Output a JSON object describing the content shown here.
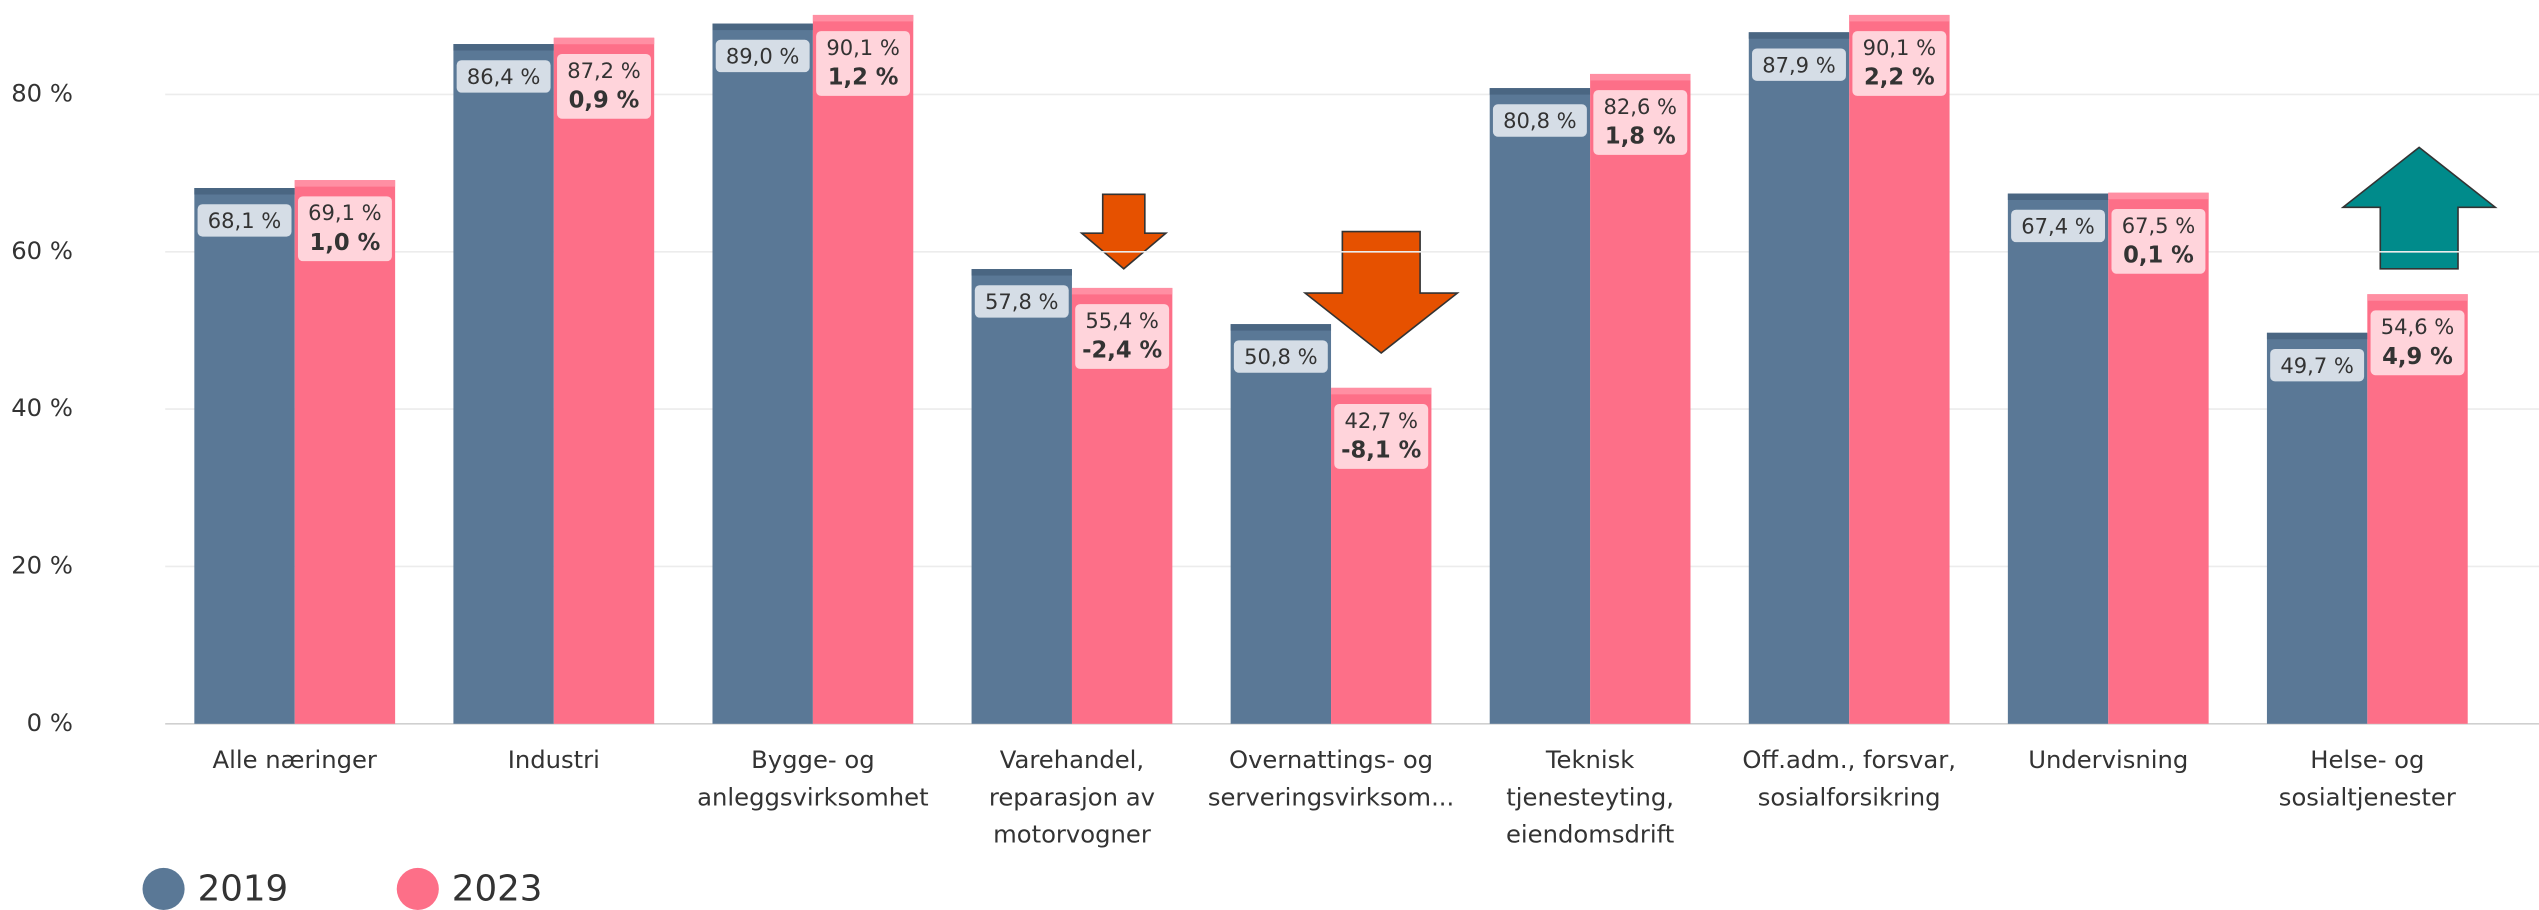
{
  "chart_data": {
    "type": "bar",
    "categories": [
      "Alle næringer",
      "Industri",
      "Bygge- og\nanleggsvirksomhet",
      "Varehandel,\nreparasjon av\nmotorvogner",
      "Overnattings- og\nserveringsvirksom...",
      "Teknisk\ntjenesteyting,\neiendomsdrift",
      "Off.adm., forsvar,\nsosialforsikring",
      "Undervisning",
      "Helse- og\nsosialtjenester"
    ],
    "series": [
      {
        "name": "2019",
        "color": "#5a7896",
        "values": [
          68.1,
          86.4,
          89.0,
          57.8,
          50.8,
          80.8,
          87.9,
          67.4,
          49.7
        ],
        "value_labels": [
          "68,1 %",
          "86,4 %",
          "89,0 %",
          "57,8 %",
          "50,8 %",
          "80,8 %",
          "87,9 %",
          "67,4 %",
          "49,7 %"
        ]
      },
      {
        "name": "2023",
        "color": "#fd6f88",
        "values": [
          69.1,
          87.2,
          90.1,
          55.4,
          42.7,
          82.6,
          90.1,
          67.5,
          54.6
        ],
        "value_labels": [
          "69,1 %",
          "87,2 %",
          "90,1 %",
          "55,4 %",
          "42,7 %",
          "82,6 %",
          "90,1 %",
          "67,5 %",
          "54,6 %"
        ]
      }
    ],
    "changes": {
      "values": [
        1.0,
        0.9,
        1.2,
        -2.4,
        -8.1,
        1.8,
        2.2,
        0.1,
        4.9
      ],
      "value_labels": [
        "1,0 %",
        "0,9 %",
        "1,2 %",
        "-2,4 %",
        "-8,1 %",
        "1,8 %",
        "2,2 %",
        "0,1 %",
        "4,9 %"
      ]
    },
    "ylim": [
      0,
      92
    ],
    "yticks": [
      {
        "value": 0,
        "label": "0 %"
      },
      {
        "value": 20,
        "label": "20 %"
      },
      {
        "value": 40,
        "label": "40 %"
      },
      {
        "value": 60,
        "label": "60 %"
      },
      {
        "value": 80,
        "label": "80 %"
      }
    ],
    "grid": true
  }
}
